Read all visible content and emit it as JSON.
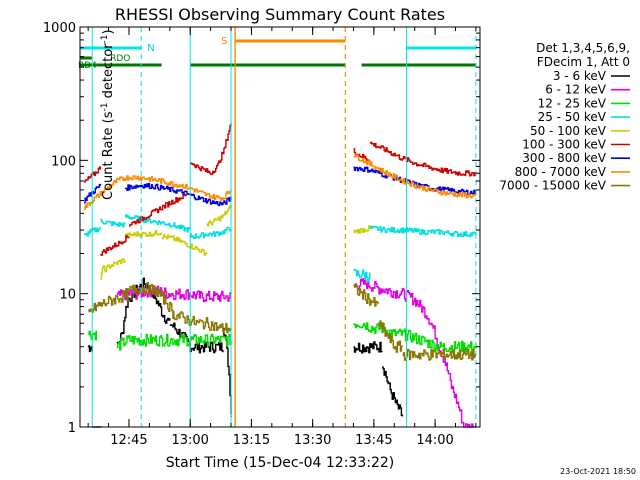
{
  "chart_data": {
    "type": "line",
    "title": "RHESSI Observing Summary Count Rates",
    "xlabel": "Start Time (15-Dec-04 12:33:22)",
    "ylabel_main": "Count Rate (s",
    "ylabel_sup1": "-1",
    "ylabel_mid": " detector",
    "ylabel_sup2": "-1",
    "ylabel_end": ")",
    "yscale": "log",
    "ylim": [
      1,
      1000
    ],
    "xlim": [
      "12:33",
      "14:11"
    ],
    "y_ticks": [
      "1",
      "10",
      "100",
      "1000"
    ],
    "x_ticks": [
      "12:45",
      "13:00",
      "13:15",
      "13:30",
      "13:45",
      "14:00"
    ],
    "legend_header": [
      "Det 1,3,4,5,6,9,",
      "FDecim 1, Att 0"
    ],
    "footer_date": "23-Oct-2021 18:50",
    "flag_labels": {
      "rdo": "RDO",
      "rd4": "RD4",
      "n": "N",
      "s": "S"
    },
    "flags": {
      "night_spans": [
        [
          "12:33",
          "12:48"
        ],
        [
          "13:53",
          "14:10"
        ]
      ],
      "saa_span": [
        "13:11",
        "13:38"
      ],
      "rdo_span": [
        "12:33",
        "12:36"
      ],
      "rd4_spans": [
        [
          "12:33",
          "12:37"
        ],
        [
          "12:37",
          "12:53"
        ],
        [
          "13:00",
          "13:38"
        ],
        [
          "13:42",
          "14:10"
        ]
      ],
      "cyan_lines": [
        "12:36",
        "13:00",
        "13:10",
        "13:53"
      ],
      "cyan_dashed_lines": [
        "12:48",
        "14:10"
      ],
      "orange_lines": [
        "13:11"
      ],
      "orange_dashed_lines": [
        "13:38"
      ]
    },
    "series": [
      {
        "name": "3 - 6 keV",
        "color": "#000000",
        "segments": [
          {
            "start": "12:35",
            "end": "12:36",
            "values": [
              4,
              4
            ]
          },
          {
            "start": "12:36",
            "end": "12:38",
            "values": [
              1
            ]
          },
          {
            "start": "12:42",
            "end": "12:50",
            "values": [
              4,
              5,
              9,
              10,
              11,
              12,
              11
            ]
          },
          {
            "start": "12:50",
            "end": "12:55",
            "values": [
              11,
              9,
              7,
              6
            ]
          },
          {
            "start": "12:55",
            "end": "13:08",
            "values": [
              6,
              5,
              4,
              4,
              4,
              4
            ]
          },
          {
            "start": "13:08",
            "end": "13:10",
            "values": [
              6,
              1.3
            ]
          },
          {
            "start": "13:40",
            "end": "13:47",
            "values": [
              4,
              4,
              4,
              4
            ]
          },
          {
            "start": "13:47",
            "end": "13:52",
            "values": [
              3,
              2,
              1.5,
              1.2
            ]
          }
        ]
      },
      {
        "name": "6 - 12 keV",
        "color": "#e000e0",
        "segments": [
          {
            "start": "12:42",
            "end": "13:10",
            "values": [
              9.5,
              10,
              10,
              10.5,
              10.5,
              10,
              10,
              10,
              9.5,
              9.5,
              9.5,
              9.5
            ]
          },
          {
            "start": "13:10",
            "end": "13:10",
            "values": [
              1.2
            ]
          },
          {
            "start": "13:40",
            "end": "14:10",
            "values": [
              11.5,
              12,
              11,
              10.5,
              10,
              9,
              7,
              4,
              2,
              1,
              1
            ]
          }
        ]
      },
      {
        "name": "12 - 25 keV",
        "color": "#00dd00",
        "segments": [
          {
            "start": "12:35",
            "end": "12:37",
            "values": [
              5,
              5,
              5
            ]
          },
          {
            "start": "12:37",
            "end": "12:38",
            "values": [
              1
            ]
          },
          {
            "start": "12:42",
            "end": "13:10",
            "values": [
              4,
              4.5,
              4.5,
              4.5,
              4.5,
              4.5,
              4.5,
              4.5,
              4.5,
              4.5,
              4.5
            ]
          },
          {
            "start": "13:40",
            "end": "13:52",
            "values": [
              6,
              6,
              5.5,
              5.5,
              5,
              5
            ]
          },
          {
            "start": "13:52",
            "end": "14:10",
            "values": [
              5,
              4.5,
              4,
              4,
              4
            ]
          }
        ]
      },
      {
        "name": "25 - 50 keV",
        "color": "#00e0e0",
        "segments": [
          {
            "start": "12:34",
            "end": "12:38",
            "values": [
              27,
              29,
              30,
              31
            ]
          },
          {
            "start": "12:38",
            "end": "12:44",
            "values": [
              35,
              34,
              33,
              33
            ]
          },
          {
            "start": "12:44",
            "end": "13:00",
            "values": [
              38,
              37,
              36,
              35,
              34,
              33,
              31,
              30
            ]
          },
          {
            "start": "13:00",
            "end": "13:10",
            "values": [
              27,
              27,
              28,
              28,
              29,
              31
            ]
          },
          {
            "start": "13:40",
            "end": "13:44",
            "values": [
              14,
              14,
              13.5
            ]
          },
          {
            "start": "13:44",
            "end": "14:10",
            "values": [
              31,
              30,
              30,
              29,
              29,
              28,
              28
            ]
          }
        ]
      },
      {
        "name": "50 - 100 keV",
        "color": "#cccc00",
        "segments": [
          {
            "start": "12:38",
            "end": "12:44",
            "values": [
              14,
              16,
              17,
              18
            ]
          },
          {
            "start": "12:44",
            "end": "12:53",
            "values": [
              27,
              28,
              28,
              29
            ]
          },
          {
            "start": "12:53",
            "end": "13:04",
            "values": [
              27,
              26,
              24,
              22,
              20
            ]
          },
          {
            "start": "13:04",
            "end": "13:10",
            "values": [
              33,
              35,
              38,
              45
            ]
          },
          {
            "start": "13:40",
            "end": "13:44",
            "values": [
              29,
              30,
              31
            ]
          }
        ]
      },
      {
        "name": "100 - 300 keV",
        "color": "#cc0000",
        "segments": [
          {
            "start": "12:34",
            "end": "12:38",
            "values": [
              68,
              74,
              80,
              88
            ]
          },
          {
            "start": "12:38",
            "end": "12:45",
            "values": [
              20,
              22,
              24,
              27
            ]
          },
          {
            "start": "12:45",
            "end": "12:59",
            "values": [
              33,
              36,
              40,
              45,
              50,
              55
            ]
          },
          {
            "start": "13:00",
            "end": "13:10",
            "values": [
              97,
              90,
              85,
              80,
              90,
              120,
              190
            ]
          },
          {
            "start": "13:40",
            "end": "13:44",
            "values": [
              118,
              110,
              105,
              100
            ]
          },
          {
            "start": "13:44",
            "end": "14:10",
            "values": [
              135,
              120,
              105,
              95,
              88,
              83,
              80,
              80
            ]
          }
        ]
      },
      {
        "name": "300 - 800 keV",
        "color": "#0000dd",
        "segments": [
          {
            "start": "12:34",
            "end": "12:38",
            "values": [
              50,
              55,
              60,
              65
            ]
          },
          {
            "start": "12:44",
            "end": "13:00",
            "values": [
              62,
              64,
              65,
              64,
              62,
              60,
              58,
              55
            ]
          },
          {
            "start": "13:00",
            "end": "13:10",
            "values": [
              55,
              52,
              50,
              48,
              47,
              52
            ]
          },
          {
            "start": "13:40",
            "end": "14:10",
            "values": [
              88,
              85,
              78,
              72,
              66,
              62,
              60,
              58,
              57
            ]
          }
        ]
      },
      {
        "name": "800 - 7000 keV",
        "color": "#ff8800",
        "segments": [
          {
            "start": "12:34",
            "end": "12:46",
            "values": [
              44,
              50,
              56,
              63,
              70,
              74,
              75
            ]
          },
          {
            "start": "12:46",
            "end": "13:00",
            "values": [
              75,
              74,
              72,
              70,
              67,
              65,
              62
            ]
          },
          {
            "start": "13:00",
            "end": "13:10",
            "values": [
              62,
              58,
              55,
              53,
              52,
              60
            ]
          },
          {
            "start": "13:40",
            "end": "14:10",
            "values": [
              110,
              95,
              82,
              72,
              65,
              60,
              57,
              55,
              54
            ]
          }
        ]
      },
      {
        "name": "7000 - 15000 keV",
        "color": "#887700",
        "segments": [
          {
            "start": "12:35",
            "end": "12:45",
            "values": [
              7,
              8,
              8.5,
              9,
              9.5,
              10
            ]
          },
          {
            "start": "12:45",
            "end": "12:56",
            "values": [
              10.5,
              11,
              11,
              10.5,
              9,
              7
            ]
          },
          {
            "start": "12:56",
            "end": "13:10",
            "values": [
              7,
              6.5,
              6,
              6,
              5.5,
              5.5
            ]
          },
          {
            "start": "13:40",
            "end": "13:46",
            "values": [
              11,
              10,
              9,
              8
            ]
          },
          {
            "start": "13:46",
            "end": "13:52",
            "values": [
              6,
              5,
              4,
              4
            ]
          },
          {
            "start": "13:52",
            "end": "14:10",
            "values": [
              3.5,
              3.5,
              3.5,
              3.5,
              3.5
            ]
          }
        ]
      }
    ]
  }
}
